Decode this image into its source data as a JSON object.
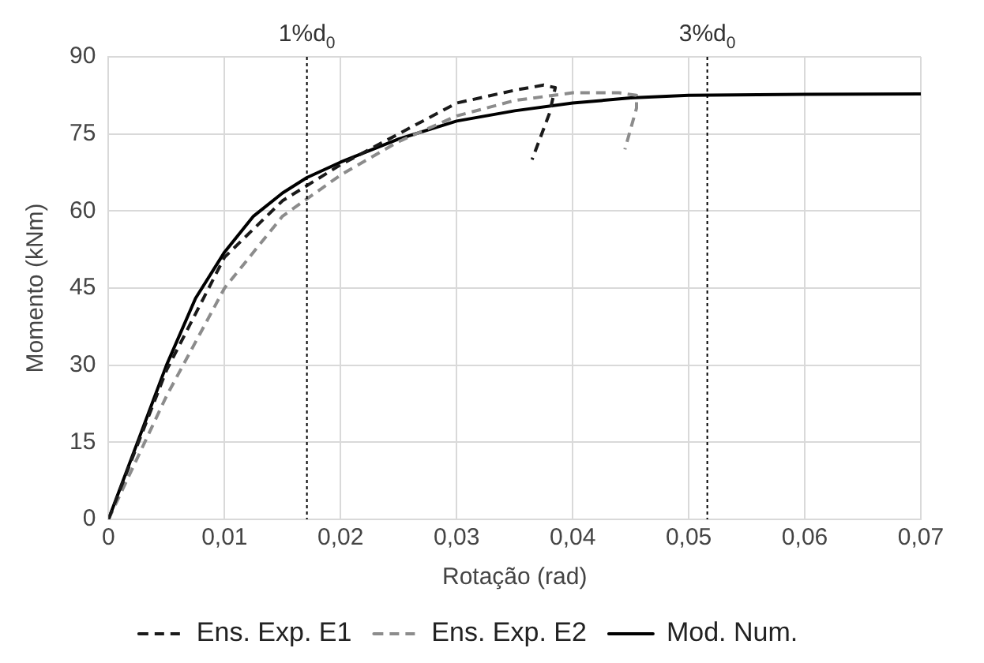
{
  "chart_data": {
    "type": "line",
    "xlabel": "Rotação (rad)",
    "ylabel": "Momento (kNm)",
    "xlim": [
      0,
      0.07
    ],
    "xticks": [
      0,
      {
        "value": 0.01,
        "label": "0,01"
      },
      {
        "value": 0.02,
        "label": "0,02"
      },
      {
        "value": 0.03,
        "label": "0,03"
      },
      {
        "value": 0.04,
        "label": "0,04"
      },
      {
        "value": 0.05,
        "label": "0,05"
      },
      {
        "value": 0.06,
        "label": "0,06"
      },
      {
        "value": 0.07,
        "label": "0,07"
      }
    ],
    "ylim": [
      0,
      90
    ],
    "yticks": [
      0,
      15,
      30,
      45,
      60,
      75,
      90
    ],
    "grid": true,
    "legend": "bottom",
    "marker": "none",
    "series": [
      {
        "name": "Ens. Exp. E1",
        "color": "#1a1a1a",
        "line_style": "dashed",
        "x": [
          0,
          0.005,
          0.01,
          0.015,
          0.02,
          0.025,
          0.03,
          0.035,
          0.0375,
          0.0385,
          0.038,
          0.0365
        ],
        "values": [
          0,
          29,
          51,
          62,
          69,
          75,
          81,
          83.5,
          84.5,
          84,
          79,
          70
        ]
      },
      {
        "name": "Ens. Exp. E2",
        "color": "#8c8c8c",
        "line_style": "dashed",
        "x": [
          0,
          0.005,
          0.01,
          0.015,
          0.02,
          0.025,
          0.03,
          0.035,
          0.04,
          0.044,
          0.0455,
          0.0455,
          0.0445
        ],
        "values": [
          0,
          24,
          45,
          59,
          67,
          73.5,
          78.5,
          81.5,
          83,
          83,
          82.5,
          80,
          72
        ]
      },
      {
        "name": "Mod. Num.",
        "color": "#000000",
        "line_style": "solid",
        "x": [
          0,
          0.0025,
          0.005,
          0.0075,
          0.01,
          0.0125,
          0.015,
          0.0171,
          0.02,
          0.025,
          0.03,
          0.035,
          0.04,
          0.045,
          0.05,
          0.06,
          0.07
        ],
        "values": [
          0,
          15,
          30,
          43,
          52,
          59,
          63.5,
          66.5,
          69.5,
          74,
          77.5,
          79.5,
          81,
          82,
          82.5,
          82.7,
          82.8
        ]
      }
    ],
    "ref_lines": [
      {
        "axis": "x",
        "value": 0.0171,
        "label": "1%d$_{0}$",
        "color": "#000000",
        "line_style": "dotted"
      },
      {
        "axis": "x",
        "value": 0.0516,
        "label": "3%d$_{0}$",
        "color": "#000000",
        "line_style": "dotted"
      }
    ]
  }
}
